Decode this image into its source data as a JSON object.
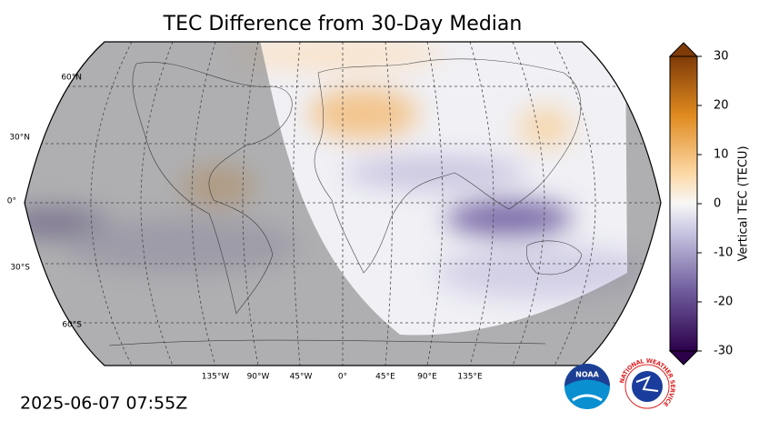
{
  "title": "TEC Difference from 30-Day Median",
  "map": {
    "lat_labels": [
      "60°N",
      "30°N",
      "0°",
      "30°S",
      "60°S"
    ],
    "lon_labels": [
      "135°W",
      "90°W",
      "45°W",
      "0°",
      "45°E",
      "90°E",
      "135°E"
    ]
  },
  "colorbar": {
    "label": "Vertical TEC (TECU)",
    "range": [
      -30,
      30
    ],
    "ticks": [
      -30,
      -20,
      -10,
      0,
      10,
      20,
      30
    ]
  },
  "timestamp": "2025-06-07 07:55Z",
  "logos": {
    "noaa": "NOAA",
    "nws": "NATIONAL WEATHER SERVICE"
  }
}
